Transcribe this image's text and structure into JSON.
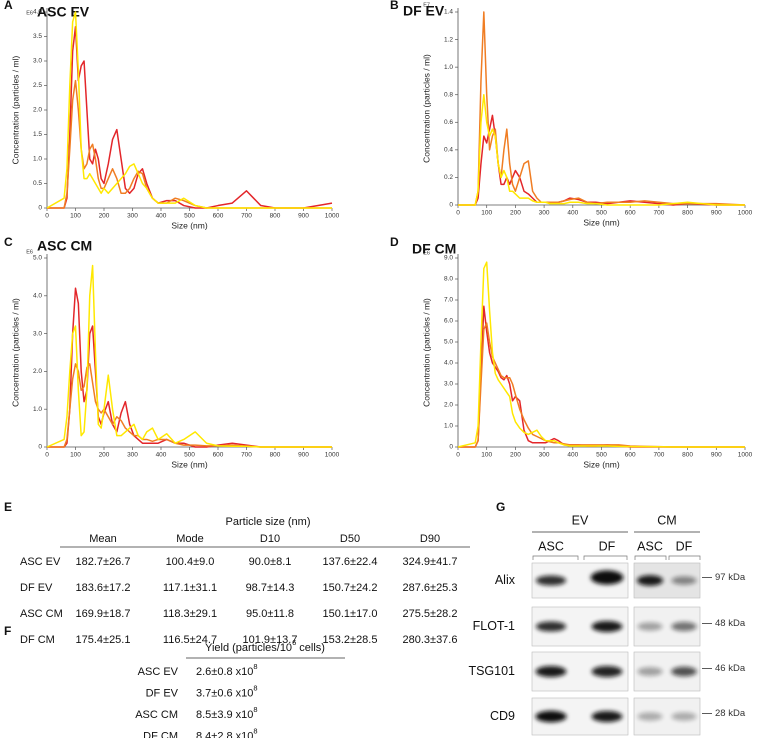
{
  "chart_data": [
    {
      "type": "line",
      "label": "A",
      "title": "ASC EV",
      "y_exponent": "E6",
      "x_label": "Size (nm)",
      "y_label": "Concentration (particles / ml)",
      "x": [
        0,
        60,
        70,
        80,
        90,
        100,
        110,
        120,
        130,
        140,
        150,
        160,
        170,
        180,
        190,
        200,
        215,
        230,
        245,
        260,
        275,
        290,
        305,
        320,
        335,
        350,
        370,
        390,
        420,
        450,
        480,
        520,
        560,
        600,
        650,
        700,
        750,
        800,
        900,
        1000
      ],
      "series": [
        {
          "color": "#e3262a",
          "values": [
            0,
            0,
            0.2,
            1.5,
            3.2,
            3.7,
            2.6,
            2.9,
            3.0,
            2.0,
            1.0,
            0.9,
            1.2,
            1.0,
            0.6,
            0.5,
            0.9,
            1.4,
            1.6,
            1.0,
            0.4,
            0.3,
            0.4,
            0.7,
            0.8,
            0.5,
            0.2,
            0.1,
            0.15,
            0.15,
            0.05,
            0,
            0,
            0.05,
            0.1,
            0.35,
            0.05,
            0,
            0,
            0.1
          ]
        },
        {
          "color": "#f07d23",
          "values": [
            0,
            0,
            0.3,
            1.2,
            2.2,
            2.6,
            2.0,
            1.2,
            0.8,
            0.9,
            1.2,
            1.3,
            1.0,
            0.6,
            0.4,
            0.4,
            0.6,
            0.8,
            0.6,
            0.3,
            0.3,
            0.4,
            0.6,
            0.75,
            0.7,
            0.4,
            0.2,
            0.1,
            0.1,
            0.2,
            0.15,
            0.05,
            0,
            0,
            0,
            0,
            0,
            0,
            0,
            0
          ]
        },
        {
          "color": "#ffe800",
          "values": [
            0,
            0.2,
            0.8,
            2.5,
            3.8,
            4.0,
            2.8,
            1.2,
            0.6,
            0.6,
            0.7,
            0.6,
            0.5,
            0.4,
            0.3,
            0.4,
            0.3,
            0.4,
            0.5,
            0.6,
            0.7,
            0.85,
            0.9,
            0.7,
            0.5,
            0.4,
            0.2,
            0.1,
            0.1,
            0.1,
            0.2,
            0.05,
            0,
            0,
            0,
            0,
            0,
            0,
            0,
            0
          ]
        }
      ],
      "xlim": [
        0,
        1000
      ],
      "xticks": [
        0,
        100,
        200,
        300,
        400,
        500,
        600,
        700,
        800,
        900,
        1000
      ],
      "ylim": [
        0,
        4.0
      ],
      "yticks": [
        0,
        0.5,
        {
          "value": 1,
          "label": "1.0"
        },
        1.5,
        {
          "value": 2,
          "label": "2.0"
        },
        2.5,
        {
          "value": 3,
          "label": "3.0"
        },
        3.5,
        {
          "value": 4,
          "label": "4.0"
        }
      ]
    },
    {
      "type": "line",
      "label": "B",
      "title": "DF EV",
      "y_exponent": "E7",
      "x_label": "Size (nm)",
      "y_label": "Concentration (particles / ml)",
      "x": [
        0,
        60,
        70,
        80,
        90,
        100,
        110,
        120,
        130,
        140,
        150,
        160,
        170,
        180,
        190,
        200,
        215,
        230,
        245,
        260,
        275,
        290,
        305,
        320,
        335,
        350,
        370,
        390,
        420,
        450,
        480,
        520,
        560,
        600,
        650,
        700,
        750,
        800,
        900,
        1000
      ],
      "series": [
        {
          "color": "#e3262a",
          "values": [
            0,
            0,
            0.05,
            0.3,
            0.5,
            0.45,
            0.55,
            0.65,
            0.5,
            0.3,
            0.15,
            0.15,
            0.2,
            0.15,
            0.2,
            0.25,
            0.2,
            0.1,
            0.08,
            0.05,
            0.02,
            0.02,
            0.02,
            0.02,
            0.02,
            0.02,
            0.03,
            0.05,
            0.04,
            0.02,
            0.02,
            0.01,
            0.02,
            0.03,
            0.02,
            0.01,
            0,
            0.01,
            0,
            0
          ]
        },
        {
          "color": "#f07d23",
          "values": [
            0,
            0,
            0.1,
            0.9,
            1.4,
            0.8,
            0.4,
            0.5,
            0.55,
            0.3,
            0.2,
            0.4,
            0.55,
            0.3,
            0.15,
            0.1,
            0.2,
            0.3,
            0.32,
            0.1,
            0.05,
            0.02,
            0.02,
            0.02,
            0.02,
            0.02,
            0.03,
            0.04,
            0.05,
            0.02,
            0.01,
            0.02,
            0.02,
            0.02,
            0.03,
            0.02,
            0.01,
            0.01,
            0.01,
            0
          ]
        },
        {
          "color": "#ffe800",
          "values": [
            0,
            0,
            0.1,
            0.6,
            0.8,
            0.6,
            0.5,
            0.55,
            0.5,
            0.3,
            0.2,
            0.25,
            0.2,
            0.1,
            0.1,
            0.08,
            0.05,
            0.05,
            0.05,
            0.03,
            0.02,
            0.02,
            0.02,
            0.01,
            0.01,
            0.01,
            0.01,
            0.02,
            0.02,
            0.01,
            0.01,
            0,
            0,
            0,
            0,
            0,
            0.01,
            0.02,
            0,
            0
          ]
        }
      ],
      "xlim": [
        0,
        1000
      ],
      "xticks": [
        0,
        100,
        200,
        300,
        400,
        500,
        600,
        700,
        800,
        900,
        1000
      ],
      "ylim": [
        0,
        1.4
      ],
      "yticks": [
        0,
        0.2,
        0.4,
        0.6,
        0.8,
        {
          "value": 1,
          "label": "1.0"
        },
        1.2,
        1.4
      ]
    },
    {
      "type": "line",
      "label": "C",
      "title": "ASC CM",
      "y_exponent": "E6",
      "x_label": "Size (nm)",
      "y_label": "Concentration (particles / ml)",
      "x": [
        0,
        60,
        70,
        80,
        90,
        100,
        110,
        120,
        130,
        140,
        150,
        160,
        170,
        180,
        190,
        200,
        215,
        230,
        245,
        260,
        275,
        290,
        305,
        320,
        335,
        350,
        370,
        390,
        420,
        450,
        480,
        520,
        560,
        600,
        650,
        700,
        750,
        800,
        900,
        1000
      ],
      "series": [
        {
          "color": "#e3262a",
          "values": [
            0,
            0,
            0.1,
            1.0,
            3.0,
            4.2,
            3.8,
            2.0,
            1.2,
            1.5,
            3.0,
            3.2,
            2.0,
            0.8,
            0.6,
            0.9,
            1.2,
            0.6,
            0.4,
            0.9,
            1.2,
            0.6,
            0.3,
            0.2,
            0.1,
            0.1,
            0.1,
            0.1,
            0.2,
            0.1,
            0.1,
            0,
            0,
            0.05,
            0.1,
            0.05,
            0,
            0,
            0,
            0
          ]
        },
        {
          "color": "#f07d23",
          "values": [
            0,
            0,
            0.2,
            1.0,
            1.8,
            2.2,
            2.0,
            1.5,
            1.6,
            2.1,
            2.2,
            1.7,
            1.2,
            1.0,
            0.9,
            1.0,
            0.8,
            0.6,
            0.8,
            0.7,
            0.5,
            0.4,
            0.3,
            0.3,
            0.2,
            0.2,
            0.15,
            0.2,
            0.2,
            0.1,
            0.05,
            0.05,
            0.03,
            0.03,
            0.05,
            0.02,
            0,
            0,
            0,
            0
          ]
        },
        {
          "color": "#ffe800",
          "values": [
            0,
            0.2,
            0.8,
            2.0,
            3.0,
            3.2,
            1.5,
            0.3,
            0.4,
            1.5,
            4.0,
            4.8,
            2.5,
            0.6,
            0.5,
            1.0,
            1.9,
            1.0,
            0.3,
            0.3,
            0.4,
            0.5,
            0.6,
            0.3,
            0.2,
            0.4,
            0.5,
            0.2,
            0.35,
            0.1,
            0.2,
            0.4,
            0.1,
            0.03,
            0.02,
            0.02,
            0,
            0,
            0,
            0
          ]
        }
      ],
      "xlim": [
        0,
        1000
      ],
      "xticks": [
        0,
        100,
        200,
        300,
        400,
        500,
        600,
        700,
        800,
        900,
        1000
      ],
      "ylim": [
        0,
        5.0
      ],
      "yticks": [
        0,
        {
          "value": 1,
          "label": "1.0"
        },
        {
          "value": 2,
          "label": "2.0"
        },
        {
          "value": 3,
          "label": "3.0"
        },
        {
          "value": 4,
          "label": "4.0"
        },
        {
          "value": 5,
          "label": "5.0"
        }
      ]
    },
    {
      "type": "line",
      "label": "D",
      "title": "DF CM",
      "y_exponent": "E6",
      "x_label": "Size (nm)",
      "y_label": "Concentration (particles / ml)",
      "x": [
        0,
        60,
        70,
        80,
        90,
        100,
        110,
        120,
        130,
        140,
        150,
        160,
        170,
        180,
        190,
        200,
        215,
        230,
        245,
        260,
        275,
        290,
        305,
        320,
        335,
        350,
        370,
        390,
        420,
        450,
        480,
        520,
        560,
        600,
        650,
        700,
        750,
        800,
        900,
        1000
      ],
      "series": [
        {
          "color": "#e3262a",
          "values": [
            0,
            0,
            0.3,
            3.5,
            6.7,
            5.5,
            4.5,
            4.0,
            3.8,
            3.6,
            3.3,
            3.2,
            3.4,
            3.0,
            2.2,
            2.4,
            2.2,
            0.8,
            0.3,
            0.2,
            0.2,
            0.2,
            0.2,
            0.3,
            0.4,
            0.3,
            0.1,
            0.1,
            0.1,
            0.05,
            0.05,
            0.1,
            0.05,
            0,
            0,
            0,
            0,
            0,
            0,
            0
          ]
        },
        {
          "color": "#f07d23",
          "values": [
            0,
            0,
            0.3,
            3.0,
            5.6,
            5.9,
            5.0,
            4.3,
            4.0,
            3.7,
            3.4,
            3.3,
            3.3,
            3.3,
            3.0,
            2.5,
            1.8,
            1.3,
            0.9,
            0.6,
            0.5,
            0.4,
            0.3,
            0.25,
            0.2,
            0.2,
            0.15,
            0.1,
            0.1,
            0.1,
            0.1,
            0.1,
            0.1,
            0.05,
            0.03,
            0.02,
            0,
            0,
            0,
            0
          ]
        },
        {
          "color": "#ffe800",
          "values": [
            0,
            0.2,
            1.0,
            5.0,
            8.5,
            8.8,
            6.5,
            4.5,
            3.5,
            3.2,
            3.0,
            2.8,
            2.6,
            2.4,
            1.6,
            1.2,
            0.9,
            0.7,
            0.6,
            0.7,
            0.8,
            0.5,
            0.3,
            0.3,
            0.3,
            0.2,
            0.1,
            0.05,
            0.05,
            0.05,
            0.05,
            0.05,
            0.03,
            0.02,
            0.02,
            0.01,
            0,
            0,
            0,
            0
          ]
        }
      ],
      "xlim": [
        0,
        1000
      ],
      "xticks": [
        0,
        100,
        200,
        300,
        400,
        500,
        600,
        700,
        800,
        900,
        1000
      ],
      "ylim": [
        0,
        9.0
      ],
      "yticks": [
        0,
        {
          "value": 1,
          "label": "1.0"
        },
        {
          "value": 2,
          "label": "2.0"
        },
        {
          "value": 3,
          "label": "3.0"
        },
        {
          "value": 4,
          "label": "4.0"
        },
        {
          "value": 5,
          "label": "5.0"
        },
        {
          "value": 6,
          "label": "6.0"
        },
        {
          "value": 7,
          "label": "7.0"
        },
        {
          "value": 8,
          "label": "8.0"
        },
        {
          "value": 9,
          "label": "9.0"
        }
      ]
    }
  ],
  "panel_e": {
    "label": "E",
    "title": "Particle size (nm)",
    "columns": [
      "Mean",
      "Mode",
      "D10",
      "D50",
      "D90"
    ],
    "rows": [
      {
        "name": "ASC EV",
        "cells": [
          "182.7±26.7",
          "100.4±9.0",
          "90.0±8.1",
          "137.6±22.4",
          "324.9±41.7"
        ]
      },
      {
        "name": "DF EV",
        "cells": [
          "183.6±17.2",
          "117.1±31.1",
          "98.7±14.3",
          "150.7±24.2",
          "287.6±25.3"
        ]
      },
      {
        "name": "ASC CM",
        "cells": [
          "169.9±18.7",
          "118.3±29.1",
          "95.0±11.8",
          "150.1±17.0",
          "275.5±28.2"
        ]
      },
      {
        "name": "DF CM",
        "cells": [
          "175.4±25.1",
          "116.5±24.7",
          "101.9±13.7",
          "153.2±28.5",
          "280.3±37.6"
        ]
      }
    ]
  },
  "panel_f": {
    "label": "F",
    "title": {
      "before": "Yield (particles/10",
      "sup": "6",
      "after": " cells)"
    },
    "rows": [
      {
        "name": "ASC EV",
        "base": "2.6±0.8 x10",
        "sup": "8"
      },
      {
        "name": "DF EV",
        "base": "3.7±0.6 x10",
        "sup": "8"
      },
      {
        "name": "ASC CM",
        "base": "8.5±3.9 x10",
        "sup": "8"
      },
      {
        "name": "DF CM",
        "base": "8.4±2.8 x10",
        "sup": "8"
      }
    ]
  },
  "panel_g": {
    "label": "G",
    "groups": [
      "EV",
      "CM"
    ],
    "lanes": [
      "ASC",
      "DF",
      "ASC",
      "DF"
    ],
    "rows": [
      {
        "name": "Alix",
        "size": "97 kDa"
      },
      {
        "name": "FLOT-1",
        "size": "48 kDa"
      },
      {
        "name": "TSG101",
        "size": "46 kDa"
      },
      {
        "name": "CD9",
        "size": "28 kDa"
      }
    ]
  }
}
